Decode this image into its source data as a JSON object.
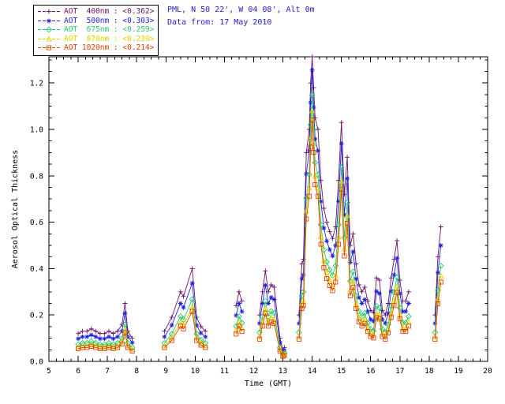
{
  "header": {
    "station_line": "PML, N 50 22', W 04 08', Alt 0m",
    "date_line": "Data from: 17 May 2010",
    "text_color": "#2121c8"
  },
  "colors": {
    "axis": "#000000",
    "background": "#ffffff"
  },
  "chart_data": {
    "type": "line",
    "title": "",
    "xlabel": "Time (GMT)",
    "ylabel": "Aerosol Optical Thickness",
    "xlim": [
      5,
      20
    ],
    "ylim": [
      0,
      1.313
    ],
    "xticks": [
      5,
      6,
      7,
      8,
      9,
      10,
      11,
      12,
      13,
      14,
      15,
      16,
      17,
      18,
      19,
      20
    ],
    "yticks": [
      0.0,
      0.2,
      0.4,
      0.6,
      0.8,
      1.0,
      1.2
    ],
    "grid": false,
    "legend_position": "top-left",
    "gap_threshold": 0.35,
    "x": [
      6.0,
      6.15,
      6.3,
      6.45,
      6.6,
      6.75,
      6.9,
      7.05,
      7.2,
      7.35,
      7.5,
      7.6,
      7.7,
      7.85,
      8.95,
      9.2,
      9.5,
      9.6,
      9.9,
      10.05,
      10.2,
      10.35,
      11.4,
      11.5,
      11.6,
      12.2,
      12.3,
      12.4,
      12.5,
      12.6,
      12.7,
      12.9,
      13.0,
      13.05,
      13.55,
      13.65,
      13.7,
      13.8,
      13.9,
      13.95,
      14.0,
      14.05,
      14.1,
      14.2,
      14.3,
      14.4,
      14.5,
      14.6,
      14.7,
      14.8,
      14.9,
      15.0,
      15.1,
      15.2,
      15.3,
      15.4,
      15.5,
      15.6,
      15.7,
      15.8,
      15.9,
      16.0,
      16.1,
      16.2,
      16.3,
      16.4,
      16.5,
      16.6,
      16.7,
      16.8,
      16.9,
      17.0,
      17.1,
      17.2,
      17.3,
      18.2,
      18.3,
      18.4
    ],
    "series": [
      {
        "name": "AOT  400nm",
        "mean": "<0.362>",
        "color": "#6d1068",
        "symbol": "plus",
        "values": [
          0.12,
          0.13,
          0.13,
          0.14,
          0.13,
          0.12,
          0.12,
          0.13,
          0.12,
          0.13,
          0.16,
          0.25,
          0.13,
          0.1,
          0.13,
          0.19,
          0.3,
          0.28,
          0.4,
          0.19,
          0.15,
          0.13,
          0.24,
          0.3,
          0.26,
          0.2,
          0.3,
          0.39,
          0.3,
          0.33,
          0.32,
          0.1,
          0.05,
          0.06,
          0.2,
          0.42,
          0.44,
          0.9,
          1.0,
          1.2,
          1.35,
          1.18,
          1.05,
          1.0,
          0.78,
          0.66,
          0.6,
          0.56,
          0.53,
          0.58,
          0.78,
          1.03,
          0.72,
          0.88,
          0.5,
          0.55,
          0.42,
          0.33,
          0.3,
          0.32,
          0.26,
          0.22,
          0.21,
          0.36,
          0.35,
          0.22,
          0.2,
          0.25,
          0.36,
          0.44,
          0.52,
          0.35,
          0.26,
          0.26,
          0.3,
          0.2,
          0.45,
          0.58
        ]
      },
      {
        "name": "AOT  500nm",
        "mean": "<0.303>",
        "color": "#2222dd",
        "symbol": "asterisk",
        "values": [
          0.098,
          0.106,
          0.106,
          0.114,
          0.106,
          0.098,
          0.098,
          0.106,
          0.098,
          0.106,
          0.131,
          0.207,
          0.106,
          0.081,
          0.106,
          0.156,
          0.25,
          0.232,
          0.337,
          0.156,
          0.122,
          0.106,
          0.198,
          0.25,
          0.215,
          0.164,
          0.25,
          0.328,
          0.25,
          0.276,
          0.267,
          0.081,
          0.04,
          0.048,
          0.164,
          0.355,
          0.373,
          0.808,
          0.908,
          1.116,
          1.256,
          1.095,
          0.959,
          0.908,
          0.69,
          0.575,
          0.519,
          0.482,
          0.454,
          0.5,
          0.69,
          0.939,
          0.632,
          0.788,
          0.427,
          0.473,
          0.355,
          0.276,
          0.25,
          0.267,
          0.215,
          0.181,
          0.173,
          0.302,
          0.293,
          0.181,
          0.164,
          0.207,
          0.302,
          0.373,
          0.445,
          0.293,
          0.215,
          0.215,
          0.25,
          0.164,
          0.382,
          0.5
        ]
      },
      {
        "name": "AOT  675nm",
        "mean": "<0.259>",
        "color": "#27c96f",
        "symbol": "diamond",
        "values": [
          0.073,
          0.079,
          0.079,
          0.086,
          0.079,
          0.073,
          0.073,
          0.079,
          0.073,
          0.079,
          0.099,
          0.159,
          0.079,
          0.06,
          0.079,
          0.118,
          0.194,
          0.18,
          0.268,
          0.118,
          0.092,
          0.079,
          0.152,
          0.194,
          0.166,
          0.125,
          0.194,
          0.26,
          0.194,
          0.216,
          0.209,
          0.06,
          0.03,
          0.036,
          0.125,
          0.283,
          0.299,
          0.704,
          0.805,
          1.02,
          1.148,
          0.998,
          0.857,
          0.805,
          0.589,
          0.481,
          0.429,
          0.395,
          0.371,
          0.412,
          0.589,
          0.836,
          0.534,
          0.685,
          0.346,
          0.387,
          0.283,
          0.216,
          0.194,
          0.209,
          0.166,
          0.139,
          0.132,
          0.238,
          0.231,
          0.139,
          0.125,
          0.159,
          0.238,
          0.299,
          0.362,
          0.231,
          0.166,
          0.166,
          0.194,
          0.125,
          0.306,
          0.412
        ]
      },
      {
        "name": "AOT  870nm",
        "mean": "<0.230>",
        "color": "#e2d200",
        "symbol": "triangle",
        "values": [
          0.061,
          0.067,
          0.067,
          0.072,
          0.067,
          0.061,
          0.061,
          0.067,
          0.061,
          0.067,
          0.084,
          0.137,
          0.067,
          0.051,
          0.067,
          0.101,
          0.168,
          0.155,
          0.235,
          0.101,
          0.078,
          0.067,
          0.131,
          0.168,
          0.143,
          0.107,
          0.168,
          0.228,
          0.168,
          0.187,
          0.181,
          0.051,
          0.025,
          0.03,
          0.107,
          0.249,
          0.263,
          0.648,
          0.747,
          0.96,
          1.08,
          0.938,
          0.798,
          0.747,
          0.537,
          0.433,
          0.384,
          0.352,
          0.329,
          0.368,
          0.537,
          0.777,
          0.484,
          0.629,
          0.307,
          0.345,
          0.249,
          0.187,
          0.168,
          0.181,
          0.143,
          0.118,
          0.113,
          0.207,
          0.201,
          0.118,
          0.107,
          0.137,
          0.207,
          0.263,
          0.322,
          0.201,
          0.143,
          0.143,
          0.168,
          0.107,
          0.27,
          0.368
        ]
      },
      {
        "name": "AOT 1020nm",
        "mean": "<0.214>",
        "color": "#dd4400",
        "symbol": "square",
        "values": [
          0.055,
          0.06,
          0.06,
          0.065,
          0.06,
          0.055,
          0.055,
          0.06,
          0.055,
          0.06,
          0.075,
          0.123,
          0.06,
          0.045,
          0.06,
          0.09,
          0.152,
          0.14,
          0.215,
          0.09,
          0.07,
          0.06,
          0.118,
          0.152,
          0.129,
          0.096,
          0.152,
          0.208,
          0.152,
          0.17,
          0.164,
          0.045,
          0.022,
          0.026,
          0.096,
          0.228,
          0.241,
          0.614,
          0.712,
          0.924,
          1.04,
          0.901,
          0.762,
          0.712,
          0.505,
          0.404,
          0.357,
          0.327,
          0.305,
          0.342,
          0.505,
          0.742,
          0.454,
          0.595,
          0.283,
          0.319,
          0.228,
          0.17,
          0.152,
          0.164,
          0.129,
          0.107,
          0.101,
          0.189,
          0.183,
          0.107,
          0.096,
          0.123,
          0.189,
          0.241,
          0.297,
          0.183,
          0.129,
          0.129,
          0.152,
          0.096,
          0.248,
          0.342
        ]
      }
    ]
  }
}
